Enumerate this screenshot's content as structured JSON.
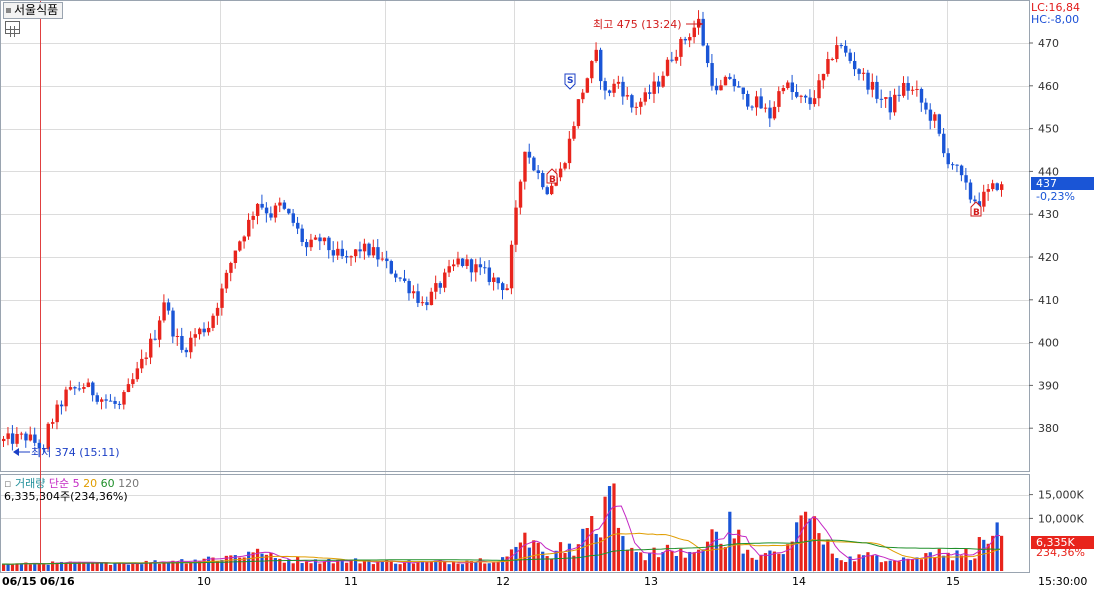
{
  "stock_name": "서울식품",
  "header": {
    "lc_label": "LC:16,84",
    "hc_label": "HC:-8,00"
  },
  "price_axis": {
    "ticks": [
      "470",
      "460",
      "450",
      "440",
      "430",
      "420",
      "410",
      "400",
      "390",
      "380"
    ]
  },
  "current": {
    "price": "437",
    "change": "-0,23%"
  },
  "annotations": {
    "high": "최고 475 (13:24)",
    "low": "최저 374 (15:11)",
    "signal_s": "S",
    "signal_b": "B"
  },
  "volume": {
    "legend": {
      "marker": "▫",
      "volume": "거래량",
      "ma_label": "단순",
      "ma5": "5",
      "ma20": "20",
      "ma60": "60",
      "ma120": "120"
    },
    "total": "6,335,304주(234,36%)",
    "ticks": [
      "15,000K",
      "10,000K"
    ],
    "current_value": "6,335K",
    "current_pct": "234,36%"
  },
  "time_axis": {
    "labels": [
      "06/15",
      "06/16",
      "10",
      "11",
      "12",
      "13",
      "14",
      "15"
    ],
    "end_time": "15:30:00"
  },
  "colors": {
    "up": "#e8241c",
    "down": "#1a55d6",
    "grid": "#dcdcdc",
    "ma5": "#c428c4",
    "ma20": "#e09d00",
    "ma60": "#1f8f2a"
  },
  "chart_data": {
    "type": "candlestick",
    "symbol": "서울식품",
    "y_range": [
      370,
      480
    ],
    "high": 475,
    "low": 374,
    "last": 437,
    "change_pct": -0.23,
    "sessions": [
      "06/15",
      "06/16",
      "10",
      "11",
      "12",
      "13",
      "14",
      "15"
    ],
    "price_path": [
      [
        0,
        377
      ],
      [
        5,
        378
      ],
      [
        8,
        376
      ],
      [
        9,
        374
      ],
      [
        10,
        380
      ],
      [
        14,
        388
      ],
      [
        18,
        390
      ],
      [
        22,
        387
      ],
      [
        26,
        385
      ],
      [
        30,
        393
      ],
      [
        34,
        402
      ],
      [
        36,
        410
      ],
      [
        38,
        403
      ],
      [
        40,
        398
      ],
      [
        43,
        402
      ],
      [
        46,
        404
      ],
      [
        49,
        412
      ],
      [
        52,
        422
      ],
      [
        55,
        428
      ],
      [
        57,
        433
      ],
      [
        60,
        430
      ],
      [
        62,
        432
      ],
      [
        65,
        428
      ],
      [
        68,
        422
      ],
      [
        71,
        424
      ],
      [
        74,
        421
      ],
      [
        77,
        419
      ],
      [
        80,
        422
      ],
      [
        83,
        421
      ],
      [
        86,
        418
      ],
      [
        89,
        415
      ],
      [
        92,
        412
      ],
      [
        94,
        409
      ],
      [
        96,
        411
      ],
      [
        99,
        415
      ],
      [
        102,
        419
      ],
      [
        105,
        418
      ],
      [
        108,
        416
      ],
      [
        111,
        414
      ],
      [
        113,
        413
      ],
      [
        115,
        430
      ],
      [
        117,
        446
      ],
      [
        119,
        441
      ],
      [
        122,
        436
      ],
      [
        125,
        440
      ],
      [
        127,
        447
      ],
      [
        129,
        456
      ],
      [
        131,
        462
      ],
      [
        133,
        467
      ],
      [
        135,
        458
      ],
      [
        138,
        461
      ],
      [
        141,
        455
      ],
      [
        144,
        457
      ],
      [
        147,
        461
      ],
      [
        150,
        467
      ],
      [
        153,
        471
      ],
      [
        156,
        475
      ],
      [
        158,
        465
      ],
      [
        160,
        458
      ],
      [
        163,
        462
      ],
      [
        166,
        457
      ],
      [
        169,
        456
      ],
      [
        172,
        453
      ],
      [
        175,
        461
      ],
      [
        178,
        457
      ],
      [
        181,
        456
      ],
      [
        184,
        462
      ],
      [
        187,
        470
      ],
      [
        190,
        466
      ],
      [
        193,
        462
      ],
      [
        196,
        458
      ],
      [
        199,
        455
      ],
      [
        202,
        460
      ],
      [
        205,
        458
      ],
      [
        207,
        454
      ],
      [
        209,
        452
      ],
      [
        211,
        444
      ],
      [
        213,
        442
      ],
      [
        215,
        438
      ],
      [
        217,
        434
      ],
      [
        219,
        433
      ],
      [
        221,
        435
      ],
      [
        223,
        437
      ]
    ],
    "volume_unit": "K",
    "volume_ticks": [
      10000,
      15000
    ],
    "volume_last": 6335,
    "volume_total": 6335304,
    "volume_pct": 234.36,
    "volume_bars": [
      [
        0,
        400
      ],
      [
        12,
        700
      ],
      [
        25,
        600
      ],
      [
        38,
        1100
      ],
      [
        52,
        2300
      ],
      [
        55,
        3000
      ],
      [
        58,
        2600
      ],
      [
        62,
        1500
      ],
      [
        70,
        1400
      ],
      [
        76,
        1300
      ],
      [
        85,
        1000
      ],
      [
        95,
        900
      ],
      [
        104,
        1100
      ],
      [
        113,
        2000
      ],
      [
        115,
        4000
      ],
      [
        117,
        7000
      ],
      [
        119,
        5400
      ],
      [
        121,
        3000
      ],
      [
        124,
        3200
      ],
      [
        127,
        4700
      ],
      [
        130,
        7800
      ],
      [
        132,
        10500
      ],
      [
        134,
        6000
      ],
      [
        136,
        16800
      ],
      [
        138,
        8000
      ],
      [
        141,
        3800
      ],
      [
        145,
        2800
      ],
      [
        150,
        3200
      ],
      [
        155,
        2900
      ],
      [
        157,
        3500
      ],
      [
        160,
        7200
      ],
      [
        163,
        11400
      ],
      [
        166,
        2600
      ],
      [
        170,
        2200
      ],
      [
        175,
        2500
      ],
      [
        180,
        11400
      ],
      [
        186,
        2600
      ],
      [
        190,
        2000
      ],
      [
        196,
        2200
      ],
      [
        205,
        1800
      ],
      [
        210,
        3600
      ],
      [
        215,
        2200
      ],
      [
        222,
        6335
      ]
    ],
    "moving_averages": {
      "ma5": "단순 5",
      "ma20": "20",
      "ma60": "60",
      "ma120": "120"
    }
  }
}
